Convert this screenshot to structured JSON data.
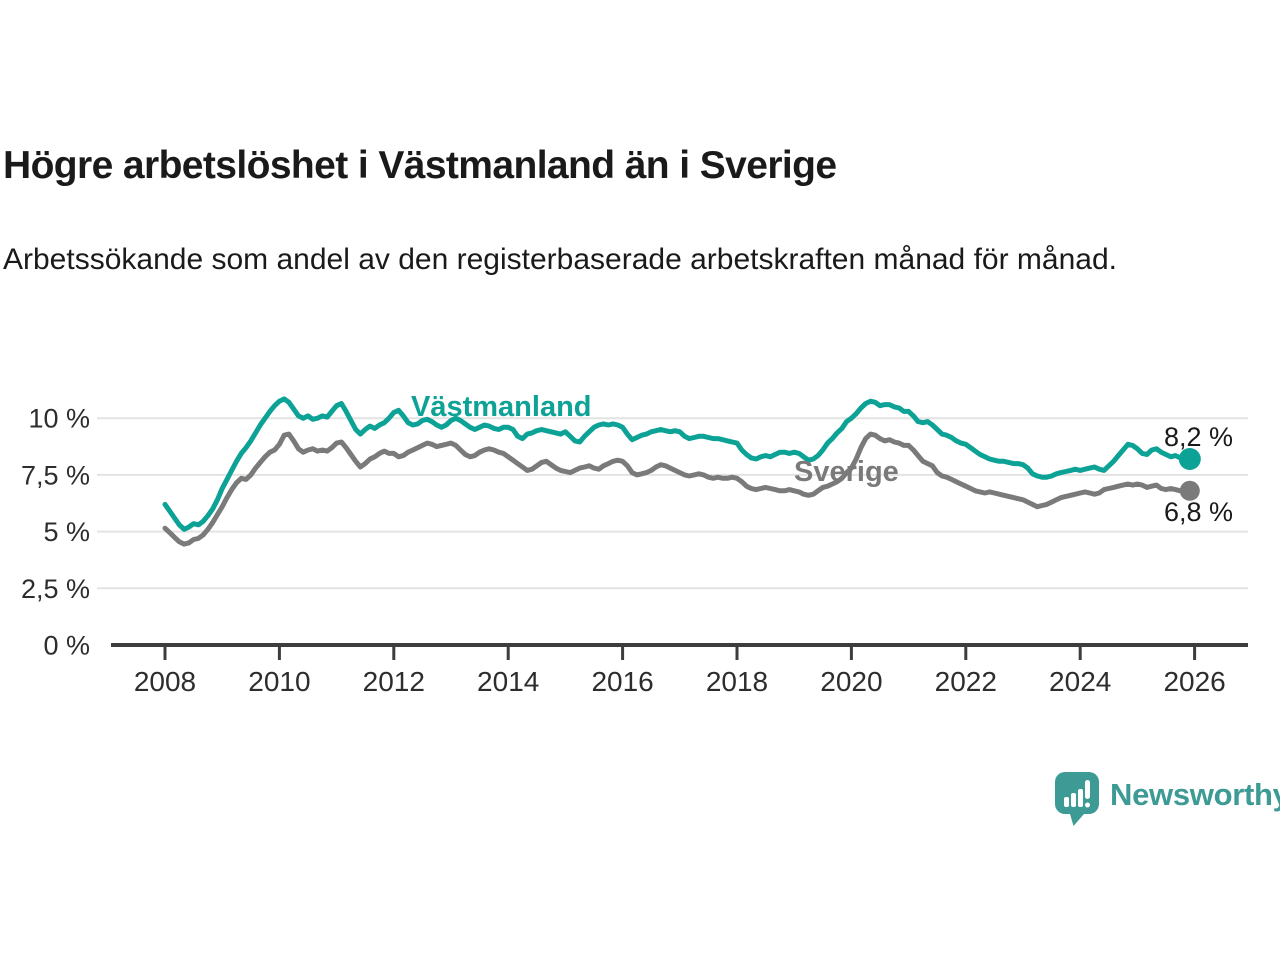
{
  "title": "Högre arbetslöshet i Västmanland än i Sverige",
  "subtitle": "Arbetssökande som andel av den registerbaserade arbetskraften månad för månad.",
  "branding": {
    "name": "Newsworthy",
    "color": "#3d9a94"
  },
  "chart_data": {
    "type": "line",
    "title": "Högre arbetslöshet i Västmanland än i Sverige",
    "subtitle": "Arbetssökande som andel av den registerbaserade arbetskraften månad för månad.",
    "unit": "%",
    "frequency": "monthly",
    "x_start_year": 2008,
    "x_tick_years": [
      2008,
      2010,
      2012,
      2014,
      2016,
      2018,
      2020,
      2022,
      2024,
      2026
    ],
    "y_ticks": {
      "values": [
        0,
        2.5,
        5,
        7.5,
        10
      ],
      "labels": [
        "0 %",
        "2,5 %",
        "5 %",
        "7,5 %",
        "10 %"
      ]
    },
    "ylim": [
      0,
      11.6
    ],
    "grid": "horizontal",
    "legend_position": "inline-labels",
    "axis_color": "#3d3d3d",
    "grid_color": "#e3e3e3",
    "series": [
      {
        "name": "Västmanland",
        "color": "#0da296",
        "end_label": "8,2 %",
        "end_value": 8.2,
        "values": [
          6.2,
          5.9,
          5.6,
          5.3,
          5.1,
          5.2,
          5.35,
          5.3,
          5.45,
          5.7,
          6.0,
          6.4,
          6.9,
          7.3,
          7.7,
          8.1,
          8.45,
          8.7,
          9.0,
          9.35,
          9.7,
          10.0,
          10.3,
          10.55,
          10.75,
          10.85,
          10.7,
          10.4,
          10.1,
          10.0,
          10.1,
          9.95,
          10.0,
          10.1,
          10.05,
          10.3,
          10.55,
          10.65,
          10.3,
          9.9,
          9.5,
          9.3,
          9.5,
          9.65,
          9.55,
          9.7,
          9.8,
          10.0,
          10.25,
          10.35,
          10.1,
          9.8,
          9.7,
          9.75,
          9.9,
          9.95,
          9.85,
          9.7,
          9.6,
          9.7,
          9.9,
          10.0,
          9.9,
          9.75,
          9.6,
          9.5,
          9.6,
          9.7,
          9.65,
          9.55,
          9.5,
          9.6,
          9.6,
          9.5,
          9.2,
          9.1,
          9.3,
          9.35,
          9.45,
          9.5,
          9.45,
          9.4,
          9.35,
          9.3,
          9.4,
          9.2,
          9.0,
          8.95,
          9.2,
          9.4,
          9.6,
          9.7,
          9.75,
          9.7,
          9.75,
          9.7,
          9.6,
          9.3,
          9.05,
          9.15,
          9.25,
          9.3,
          9.4,
          9.45,
          9.5,
          9.45,
          9.4,
          9.45,
          9.4,
          9.2,
          9.1,
          9.15,
          9.2,
          9.2,
          9.15,
          9.1,
          9.1,
          9.05,
          9.0,
          8.95,
          8.9,
          8.6,
          8.4,
          8.25,
          8.2,
          8.3,
          8.35,
          8.3,
          8.4,
          8.5,
          8.5,
          8.45,
          8.5,
          8.45,
          8.3,
          8.15,
          8.2,
          8.35,
          8.6,
          8.9,
          9.1,
          9.35,
          9.55,
          9.85,
          10.0,
          10.2,
          10.45,
          10.65,
          10.75,
          10.7,
          10.55,
          10.6,
          10.6,
          10.5,
          10.45,
          10.3,
          10.3,
          10.1,
          9.85,
          9.8,
          9.85,
          9.7,
          9.5,
          9.3,
          9.25,
          9.15,
          9.0,
          8.9,
          8.85,
          8.7,
          8.55,
          8.4,
          8.3,
          8.2,
          8.15,
          8.1,
          8.1,
          8.05,
          8.0,
          8.0,
          7.95,
          7.8,
          7.55,
          7.45,
          7.4,
          7.4,
          7.45,
          7.55,
          7.6,
          7.65,
          7.7,
          7.75,
          7.7,
          7.75,
          7.8,
          7.85,
          7.75,
          7.7,
          7.9,
          8.1,
          8.35,
          8.6,
          8.85,
          8.8,
          8.65,
          8.45,
          8.4,
          8.6,
          8.65,
          8.5,
          8.4,
          8.3,
          8.35,
          8.25,
          8.2,
          8.2
        ]
      },
      {
        "name": "Sverige",
        "color": "#7a7a7a",
        "end_label": "6,8 %",
        "end_value": 6.8,
        "values": [
          5.15,
          4.95,
          4.75,
          4.55,
          4.45,
          4.5,
          4.65,
          4.7,
          4.85,
          5.1,
          5.4,
          5.75,
          6.1,
          6.5,
          6.85,
          7.15,
          7.35,
          7.3,
          7.5,
          7.8,
          8.05,
          8.3,
          8.5,
          8.6,
          8.85,
          9.25,
          9.3,
          9.0,
          8.65,
          8.5,
          8.6,
          8.65,
          8.55,
          8.6,
          8.55,
          8.7,
          8.9,
          8.95,
          8.7,
          8.4,
          8.1,
          7.85,
          8.0,
          8.2,
          8.3,
          8.45,
          8.55,
          8.45,
          8.45,
          8.3,
          8.35,
          8.5,
          8.6,
          8.7,
          8.8,
          8.9,
          8.85,
          8.75,
          8.8,
          8.85,
          8.9,
          8.8,
          8.6,
          8.4,
          8.3,
          8.35,
          8.5,
          8.6,
          8.65,
          8.6,
          8.5,
          8.45,
          8.3,
          8.15,
          8.0,
          7.85,
          7.7,
          7.75,
          7.9,
          8.05,
          8.1,
          7.95,
          7.8,
          7.7,
          7.65,
          7.6,
          7.7,
          7.8,
          7.85,
          7.9,
          7.8,
          7.75,
          7.9,
          8.0,
          8.1,
          8.15,
          8.1,
          7.9,
          7.6,
          7.5,
          7.55,
          7.6,
          7.7,
          7.85,
          7.95,
          7.9,
          7.8,
          7.7,
          7.6,
          7.5,
          7.45,
          7.5,
          7.55,
          7.5,
          7.4,
          7.35,
          7.4,
          7.35,
          7.35,
          7.4,
          7.35,
          7.2,
          7.0,
          6.9,
          6.85,
          6.9,
          6.95,
          6.9,
          6.85,
          6.8,
          6.8,
          6.85,
          6.8,
          6.75,
          6.65,
          6.6,
          6.65,
          6.8,
          6.95,
          7.0,
          7.1,
          7.2,
          7.35,
          7.6,
          7.8,
          8.2,
          8.7,
          9.1,
          9.3,
          9.25,
          9.1,
          9.0,
          9.05,
          8.95,
          8.9,
          8.8,
          8.8,
          8.6,
          8.35,
          8.1,
          8.0,
          7.9,
          7.6,
          7.45,
          7.4,
          7.3,
          7.2,
          7.1,
          7.0,
          6.9,
          6.8,
          6.75,
          6.7,
          6.75,
          6.7,
          6.65,
          6.6,
          6.55,
          6.5,
          6.45,
          6.4,
          6.3,
          6.2,
          6.1,
          6.15,
          6.2,
          6.3,
          6.4,
          6.5,
          6.55,
          6.6,
          6.65,
          6.7,
          6.75,
          6.7,
          6.65,
          6.7,
          6.85,
          6.9,
          6.95,
          7.0,
          7.05,
          7.1,
          7.05,
          7.1,
          7.05,
          6.95,
          7.0,
          7.05,
          6.9,
          6.85,
          6.9,
          6.85,
          6.8,
          6.8,
          6.8
        ]
      }
    ]
  }
}
